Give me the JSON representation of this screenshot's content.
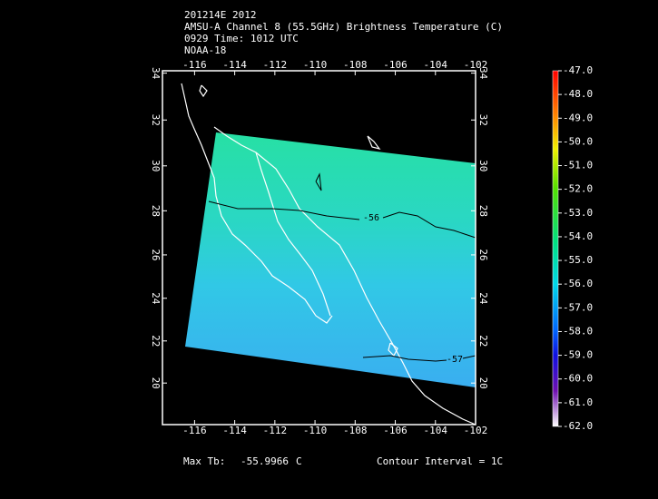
{
  "header": {
    "lines": [
      "201214E 2012",
      "AMSU-A Channel 8 (55.5GHz) Brightness Temperature (C)",
      "0929 Time: 1012 UTC",
      "NOAA-18"
    ]
  },
  "map": {
    "projection": "mercator",
    "xlim": [
      -117.6,
      -102
    ],
    "ylim": [
      18,
      34.1
    ],
    "xticks": [
      -116,
      -114,
      -112,
      -110,
      -108,
      -106,
      -104,
      -102
    ],
    "yticks": [
      20,
      22,
      24,
      26,
      28,
      30,
      32,
      34
    ],
    "contours": [
      {
        "value": -56
      },
      {
        "value": -57
      }
    ]
  },
  "colorbar": {
    "range": [
      -62,
      -47
    ],
    "ticks": [
      {
        "value": -47,
        "label": "-47.0"
      },
      {
        "value": -48,
        "label": "-48.0"
      },
      {
        "value": -49,
        "label": "-49.0"
      },
      {
        "value": -50,
        "label": "-50.0"
      },
      {
        "value": -51,
        "label": "-51.0"
      },
      {
        "value": -52,
        "label": "-52.0"
      },
      {
        "value": -53,
        "label": "-53.0"
      },
      {
        "value": -54,
        "label": "-54.0"
      },
      {
        "value": -55,
        "label": "-55.0"
      },
      {
        "value": -56,
        "label": "-56.0"
      },
      {
        "value": -57,
        "label": "-57.0"
      },
      {
        "value": -58,
        "label": "-58.0"
      },
      {
        "value": -59,
        "label": "-59.0"
      },
      {
        "value": -60,
        "label": "-60.0"
      },
      {
        "value": -61,
        "label": "-61.0"
      },
      {
        "value": -62,
        "label": "-62.0"
      }
    ]
  },
  "footer": {
    "max_label": "Max Tb:",
    "max_value": -55.9966,
    "unit": "C",
    "contour_interval": "Contour Interval = 1C"
  }
}
